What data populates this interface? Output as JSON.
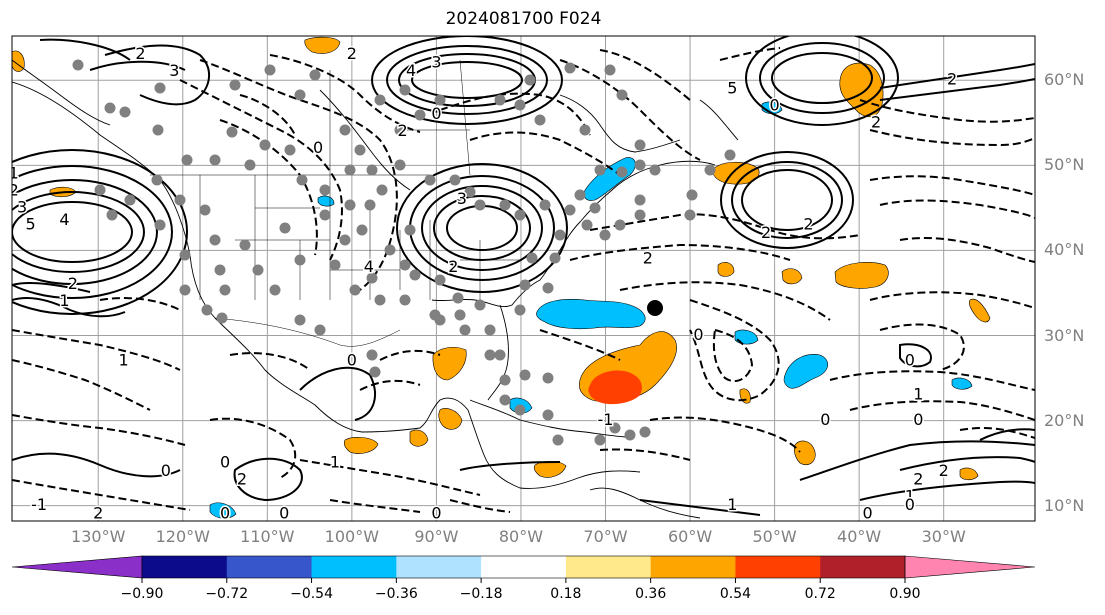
{
  "title": "2024081700 F024",
  "lat_labels": [
    "60°N",
    "50°N",
    "40°N",
    "30°N",
    "20°N",
    "10°N"
  ],
  "lon_labels": [
    "130°W",
    "120°W",
    "110°W",
    "100°W",
    "90°W",
    "80°W",
    "70°W",
    "60°W",
    "50°W",
    "40°W",
    "30°W"
  ],
  "colorbar": {
    "ticks": [
      "−0.90",
      "−0.72",
      "−0.54",
      "−0.36",
      "−0.18",
      "0.18",
      "0.36",
      "0.54",
      "0.72",
      "0.90"
    ],
    "colors": [
      "#8B2FC9",
      "#0B0B8C",
      "#3756CC",
      "#00BFFF",
      "#AEE2FF",
      "#FFFFFF",
      "#FFE98A",
      "#FFA500",
      "#FF4000",
      "#B0202A",
      "#FF85B0"
    ]
  },
  "contour_labels": [
    {
      "text": "3",
      "lon": -121,
      "lat": 61
    },
    {
      "text": "2",
      "lon": -125,
      "lat": 63
    },
    {
      "text": "4",
      "lon": -93,
      "lat": 61
    },
    {
      "text": "3",
      "lon": -90,
      "lat": 62
    },
    {
      "text": "2",
      "lon": -100,
      "lat": 63
    },
    {
      "text": "0",
      "lon": -90,
      "lat": 56
    },
    {
      "text": "2",
      "lon": -94,
      "lat": 54
    },
    {
      "text": "0",
      "lon": -104,
      "lat": 52
    },
    {
      "text": "5",
      "lon": -138,
      "lat": 43
    },
    {
      "text": "4",
      "lon": -134,
      "lat": 43.5
    },
    {
      "text": "3",
      "lon": -139,
      "lat": 45
    },
    {
      "text": "2",
      "lon": -140,
      "lat": 47
    },
    {
      "text": "1",
      "lon": -140,
      "lat": 49
    },
    {
      "text": "2",
      "lon": -133,
      "lat": 36
    },
    {
      "text": "1",
      "lon": -134,
      "lat": 34
    },
    {
      "text": "3",
      "lon": -87,
      "lat": 46
    },
    {
      "text": "2",
      "lon": -88,
      "lat": 38
    },
    {
      "text": "5",
      "lon": -55,
      "lat": 59
    },
    {
      "text": "2",
      "lon": -29,
      "lat": 60
    },
    {
      "text": "0",
      "lon": -50,
      "lat": 57
    },
    {
      "text": "2",
      "lon": -38,
      "lat": 55
    },
    {
      "text": "2",
      "lon": -51,
      "lat": 42
    },
    {
      "text": "2",
      "lon": -46,
      "lat": 43
    },
    {
      "text": "2",
      "lon": -65,
      "lat": 39
    },
    {
      "text": "0",
      "lon": -59,
      "lat": 30
    },
    {
      "text": "0",
      "lon": -34,
      "lat": 27
    },
    {
      "text": "1",
      "lon": -127,
      "lat": 27
    },
    {
      "text": "0",
      "lon": -100,
      "lat": 27
    },
    {
      "text": "4",
      "lon": -98,
      "lat": 38
    },
    {
      "text": "-1",
      "lon": -70,
      "lat": 20
    },
    {
      "text": "1",
      "lon": -33,
      "lat": 23
    },
    {
      "text": "0",
      "lon": -33,
      "lat": 20
    },
    {
      "text": "0",
      "lon": -44,
      "lat": 20
    },
    {
      "text": "0",
      "lon": -122,
      "lat": 14
    },
    {
      "text": "2",
      "lon": -113,
      "lat": 13
    },
    {
      "text": "0",
      "lon": -115,
      "lat": 15
    },
    {
      "text": "0",
      "lon": -108,
      "lat": 9
    },
    {
      "text": "0",
      "lon": -115,
      "lat": 9
    },
    {
      "text": "0",
      "lon": -90,
      "lat": 9
    },
    {
      "text": "2",
      "lon": -130,
      "lat": 9
    },
    {
      "text": "-1",
      "lon": -137,
      "lat": 10
    },
    {
      "text": "1",
      "lon": -102,
      "lat": 15
    },
    {
      "text": "1",
      "lon": -55,
      "lat": 10
    },
    {
      "text": "1",
      "lon": -34,
      "lat": 11
    },
    {
      "text": "2",
      "lon": -33,
      "lat": 13
    },
    {
      "text": "2",
      "lon": -30,
      "lat": 14
    },
    {
      "text": "0",
      "lon": -34,
      "lat": 10
    },
    {
      "text": "0",
      "lon": -39,
      "lat": 9
    }
  ]
}
